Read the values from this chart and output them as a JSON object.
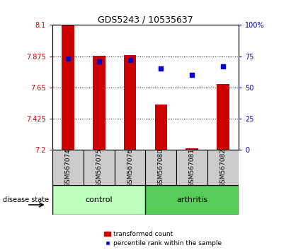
{
  "title": "GDS5243 / 10535637",
  "samples": [
    "GSM567074",
    "GSM567075",
    "GSM567076",
    "GSM567080",
    "GSM567081",
    "GSM567082"
  ],
  "transformed_count": [
    8.1,
    7.878,
    7.882,
    7.525,
    7.21,
    7.675
  ],
  "percentile_rank": [
    73,
    71,
    72,
    65,
    60,
    67
  ],
  "ymin": 7.2,
  "ymax": 8.1,
  "yticks": [
    7.2,
    7.425,
    7.65,
    7.875,
    8.1
  ],
  "ytick_labels": [
    "7.2",
    "7.425",
    "7.65",
    "7.875",
    "8.1"
  ],
  "y2min": 0,
  "y2max": 100,
  "y2ticks": [
    0,
    25,
    50,
    75,
    100
  ],
  "y2tick_labels": [
    "0",
    "25",
    "50",
    "75",
    "100%"
  ],
  "bar_color": "#cc0000",
  "dot_color": "#0000cc",
  "control_color": "#bbffbb",
  "arthritis_color": "#55cc55",
  "box_color": "#cccccc",
  "group_label": "disease state",
  "control_label": "control",
  "arthritis_label": "arthritis",
  "legend_bar_label": "transformed count",
  "legend_dot_label": "percentile rank within the sample",
  "bar_width": 0.4,
  "tick_color_left": "#cc0000",
  "tick_color_right": "#0000cc",
  "title_fontsize": 9,
  "label_fontsize": 7,
  "sample_fontsize": 6.5,
  "group_fontsize": 8
}
